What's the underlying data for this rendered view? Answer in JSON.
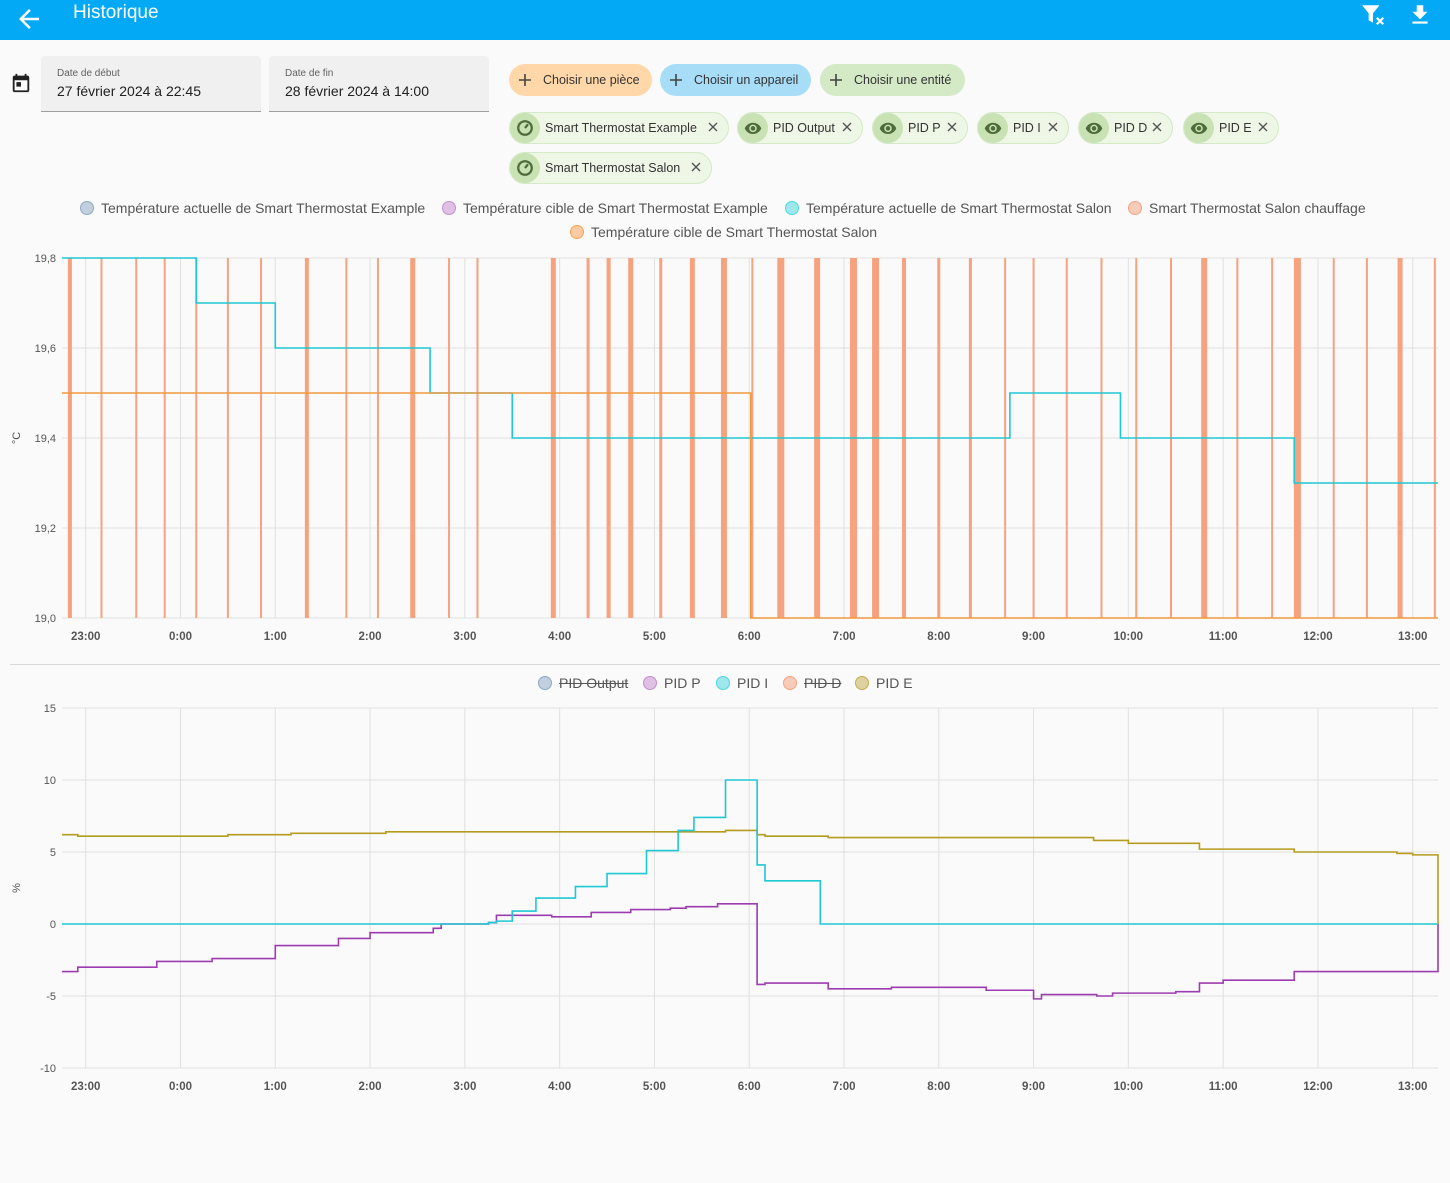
{
  "app": {
    "title": "Historique"
  },
  "date_range": {
    "start_label": "Date de début",
    "start_value": "27 février 2024 à 22:45",
    "end_label": "Date de fin",
    "end_value": "28 février 2024 à 14:00"
  },
  "add_buttons": {
    "area": "Choisir une pièce",
    "device": "Choisir un appareil",
    "entity": "Choisir une entité"
  },
  "add_button_colors": {
    "area": "#ffd7a8",
    "device": "#a8ddf7",
    "entity": "#d4e9c6"
  },
  "selected_targets": [
    {
      "label": "Smart Thermostat Example",
      "icon": "thermostat-icon"
    },
    {
      "label": "PID Output",
      "icon": "eye-icon"
    },
    {
      "label": "PID P",
      "icon": "eye-icon"
    },
    {
      "label": "PID I",
      "icon": "eye-icon"
    },
    {
      "label": "PID D",
      "icon": "eye-icon"
    },
    {
      "label": "PID E",
      "icon": "eye-icon"
    },
    {
      "label": "Smart Thermostat Salon",
      "icon": "thermostat-icon"
    }
  ],
  "icons": {
    "back": "arrow-left-icon",
    "filter_clear": "filter-remove-icon",
    "download": "download-icon",
    "calendar": "calendar-icon"
  },
  "chart_data": [
    {
      "type": "line",
      "ylabel": "°C",
      "ylim": [
        19.0,
        19.8
      ],
      "yticks": [
        "19,0",
        "19,2",
        "19,4",
        "19,6",
        "19,8"
      ],
      "xticks": [
        "23:00",
        "0:00",
        "1:00",
        "2:00",
        "3:00",
        "4:00",
        "5:00",
        "6:00",
        "7:00",
        "8:00",
        "9:00",
        "10:00",
        "11:00",
        "12:00",
        "13:00"
      ],
      "xlim": [
        "22:45",
        "13:16"
      ],
      "grid": true,
      "legend_position": "top",
      "legend": [
        {
          "name": "Température actuelle de Smart Thermostat Example",
          "color": "#8ea8c4",
          "visible": true
        },
        {
          "name": "Température cible de Smart Thermostat Example",
          "color": "#c48ecf",
          "visible": true
        },
        {
          "name": "Température actuelle de Smart Thermostat Salon",
          "color": "#4dd6e0",
          "visible": true
        },
        {
          "name": "Smart Thermostat Salon chauffage",
          "color": "#f7a27f",
          "visible": true
        },
        {
          "name": "Température cible de Smart Thermostat Salon",
          "color": "#f5a154",
          "visible": true
        }
      ],
      "series": [
        {
          "name": "Température actuelle de Smart Thermostat Salon",
          "color": "#1ec8d4",
          "step": true,
          "x": [
            "22:45",
            "23:30",
            "0:10",
            "1:00",
            "2:00",
            "2:38",
            "3:30",
            "4:00",
            "5:00",
            "6:00",
            "7:00",
            "8:00",
            "8:45",
            "9:20",
            "9:55",
            "10:30",
            "11:00",
            "11:45",
            "12:30",
            "13:16"
          ],
          "y": [
            19.8,
            19.8,
            19.7,
            19.6,
            19.6,
            19.5,
            19.4,
            19.4,
            19.4,
            19.4,
            19.4,
            19.4,
            19.5,
            19.5,
            19.4,
            19.4,
            19.4,
            19.3,
            19.3,
            19.3
          ]
        },
        {
          "name": "Température cible de Smart Thermostat Salon",
          "color": "#f09a3e",
          "step": true,
          "x": [
            "22:45",
            "3:30",
            "6:00",
            "6:01",
            "13:16"
          ],
          "y": [
            19.5,
            19.5,
            19.5,
            19.0,
            19.0
          ]
        },
        {
          "name": "Smart Thermostat Salon chauffage",
          "color": "#f7a27f",
          "type": "pulses",
          "pulses": [
            {
              "x": "22:50",
              "w": 4
            },
            {
              "x": "23:10",
              "w": 2
            },
            {
              "x": "23:32",
              "w": 2
            },
            {
              "x": "23:50",
              "w": 2
            },
            {
              "x": "0:10",
              "w": 2
            },
            {
              "x": "0:30",
              "w": 2
            },
            {
              "x": "0:51",
              "w": 2
            },
            {
              "x": "1:20",
              "w": 4
            },
            {
              "x": "1:45",
              "w": 2
            },
            {
              "x": "2:05",
              "w": 2
            },
            {
              "x": "2:27",
              "w": 5
            },
            {
              "x": "2:50",
              "w": 2
            },
            {
              "x": "3:08",
              "w": 2
            },
            {
              "x": "3:56",
              "w": 5
            },
            {
              "x": "4:18",
              "w": 3
            },
            {
              "x": "4:31",
              "w": 4
            },
            {
              "x": "4:45",
              "w": 5
            },
            {
              "x": "5:04",
              "w": 3
            },
            {
              "x": "5:24",
              "w": 5
            },
            {
              "x": "5:44",
              "w": 6
            },
            {
              "x": "6:02",
              "w": 2
            },
            {
              "x": "6:20",
              "w": 7
            },
            {
              "x": "6:43",
              "w": 6
            },
            {
              "x": "7:06",
              "w": 7
            },
            {
              "x": "7:20",
              "w": 7
            },
            {
              "x": "7:38",
              "w": 4
            },
            {
              "x": "8:00",
              "w": 3
            },
            {
              "x": "8:20",
              "w": 3
            },
            {
              "x": "8:42",
              "w": 2
            },
            {
              "x": "9:00",
              "w": 2
            },
            {
              "x": "9:21",
              "w": 2
            },
            {
              "x": "9:43",
              "w": 2
            },
            {
              "x": "10:05",
              "w": 2
            },
            {
              "x": "10:27",
              "w": 2
            },
            {
              "x": "10:48",
              "w": 6
            },
            {
              "x": "11:09",
              "w": 2
            },
            {
              "x": "11:31",
              "w": 2
            },
            {
              "x": "11:47",
              "w": 7
            },
            {
              "x": "12:10",
              "w": 2
            },
            {
              "x": "12:31",
              "w": 2
            },
            {
              "x": "12:52",
              "w": 5
            },
            {
              "x": "13:14",
              "w": 2
            }
          ]
        }
      ]
    },
    {
      "type": "line",
      "ylabel": "%",
      "ylim": [
        -10,
        15
      ],
      "yticks": [
        "-10",
        "-5",
        "0",
        "5",
        "10",
        "15"
      ],
      "xticks": [
        "23:00",
        "0:00",
        "1:00",
        "2:00",
        "3:00",
        "4:00",
        "5:00",
        "6:00",
        "7:00",
        "8:00",
        "9:00",
        "10:00",
        "11:00",
        "12:00",
        "13:00"
      ],
      "xlim": [
        "22:45",
        "13:16"
      ],
      "grid": true,
      "legend_position": "top",
      "legend": [
        {
          "name": "PID Output",
          "color": "#8ea8c4",
          "visible": false
        },
        {
          "name": "PID P",
          "color": "#c48ecf",
          "visible": true
        },
        {
          "name": "PID I",
          "color": "#4dd6e0",
          "visible": true
        },
        {
          "name": "PID D",
          "color": "#f7a27f",
          "visible": false
        },
        {
          "name": "PID E",
          "color": "#c3ae4e",
          "visible": true
        }
      ],
      "series": [
        {
          "name": "PID E",
          "color": "#b59b1e",
          "step": true,
          "x": [
            "22:45",
            "22:55",
            "23:30",
            "0:30",
            "1:00",
            "1:10",
            "2:00",
            "2:10",
            "3:00",
            "3:30",
            "4:00",
            "4:30",
            "5:00",
            "5:30",
            "5:45",
            "5:55",
            "6:05",
            "6:10",
            "6:45",
            "6:50",
            "7:30",
            "8:30",
            "9:05",
            "9:30",
            "9:38",
            "10:00",
            "10:45",
            "11:45",
            "12:30",
            "12:50",
            "13:00",
            "13:16",
            "13:16"
          ],
          "y": [
            6.2,
            6.1,
            6.1,
            6.2,
            6.2,
            6.3,
            6.3,
            6.4,
            6.4,
            6.4,
            6.4,
            6.4,
            6.4,
            6.4,
            6.5,
            6.5,
            6.2,
            6.1,
            6.1,
            6.0,
            6.0,
            6.0,
            6.0,
            6.0,
            5.8,
            5.6,
            5.2,
            5.0,
            5.0,
            4.9,
            4.8,
            4.8,
            0
          ]
        },
        {
          "name": "PID P",
          "color": "#9c3cb0",
          "step": true,
          "x": [
            "22:45",
            "22:55",
            "23:45",
            "0:20",
            "1:00",
            "1:40",
            "2:00",
            "2:40",
            "2:45",
            "3:15",
            "3:20",
            "3:55",
            "4:20",
            "4:45",
            "5:10",
            "5:20",
            "5:40",
            "6:05",
            "6:10",
            "6:30",
            "6:50",
            "7:30",
            "8:00",
            "8:30",
            "9:00",
            "9:05",
            "9:40",
            "9:50",
            "10:30",
            "10:45",
            "11:00",
            "11:45",
            "13:00",
            "13:16",
            "13:16"
          ],
          "y": [
            -3.3,
            -3.0,
            -2.6,
            -2.4,
            -1.5,
            -1.0,
            -0.6,
            -0.3,
            0.0,
            0.1,
            0.6,
            0.5,
            0.8,
            1.0,
            1.1,
            1.2,
            1.4,
            -4.2,
            -4.1,
            -4.1,
            -4.5,
            -4.4,
            -4.4,
            -4.6,
            -5.2,
            -4.9,
            -5.0,
            -4.8,
            -4.7,
            -4.1,
            -3.9,
            -3.3,
            -3.3,
            -3.3,
            0
          ]
        },
        {
          "name": "PID I",
          "color": "#1ec8d4",
          "step": true,
          "x": [
            "22:45",
            "3:15",
            "3:20",
            "3:30",
            "3:45",
            "4:10",
            "4:30",
            "4:55",
            "5:05",
            "5:15",
            "5:25",
            "5:45",
            "6:05",
            "6:10",
            "6:45",
            "13:16"
          ],
          "y": [
            0.0,
            0.1,
            0.2,
            0.9,
            1.8,
            2.6,
            3.5,
            5.1,
            5.1,
            6.5,
            7.4,
            10.0,
            4.1,
            3.0,
            0.0,
            0.0
          ]
        }
      ]
    }
  ]
}
